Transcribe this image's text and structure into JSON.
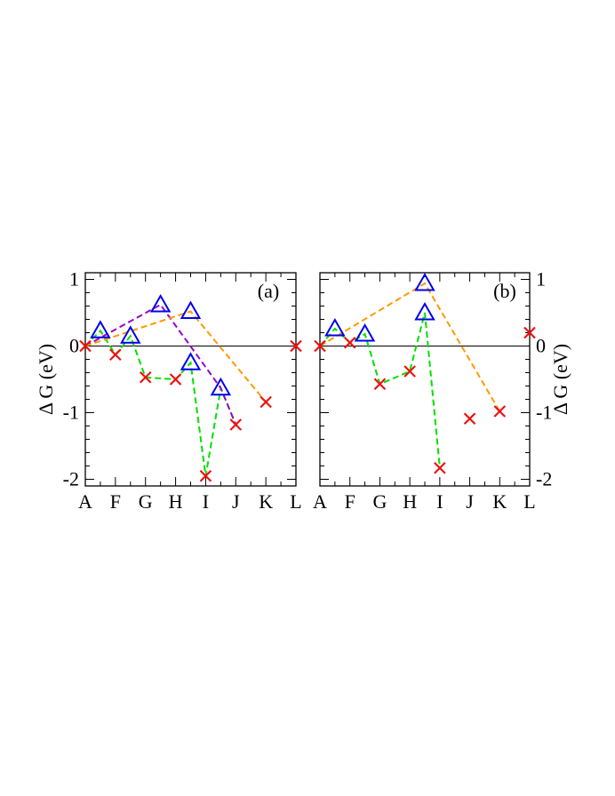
{
  "chart_data": [
    {
      "type": "scatter",
      "panel_label": "(a)",
      "ylabel": "Δ G (eV)",
      "ylabel_side": "left",
      "ylim": [
        -2.1,
        1.1
      ],
      "yticks": [
        1,
        0,
        -1,
        -2
      ],
      "ytick_labels": [
        "1",
        "0",
        "-1",
        "-2"
      ],
      "categories": [
        "A",
        "F",
        "G",
        "H",
        "I",
        "J",
        "K",
        "L"
      ],
      "grid": false,
      "points": {
        "crosses": [
          {
            "x": 0.0,
            "y": 0.0
          },
          {
            "x": 1.0,
            "y": -0.13
          },
          {
            "x": 2.0,
            "y": -0.47
          },
          {
            "x": 3.0,
            "y": -0.5
          },
          {
            "x": 4.0,
            "y": -1.95
          },
          {
            "x": 5.0,
            "y": -1.18
          },
          {
            "x": 6.0,
            "y": -0.84
          },
          {
            "x": 7.0,
            "y": 0.0
          }
        ],
        "triangles": [
          {
            "x": 0.5,
            "y": 0.23
          },
          {
            "x": 1.5,
            "y": 0.15
          },
          {
            "x": 2.5,
            "y": 0.62
          },
          {
            "x": 3.5,
            "y": 0.52
          },
          {
            "x": 3.5,
            "y": -0.25
          },
          {
            "x": 4.5,
            "y": -0.63
          }
        ]
      },
      "paths": [
        {
          "color": "#00e000",
          "points": [
            [
              0,
              0
            ],
            [
              0.5,
              0.23
            ],
            [
              1,
              -0.13
            ],
            [
              1.5,
              0.15
            ],
            [
              2,
              -0.47
            ],
            [
              3,
              -0.5
            ],
            [
              3.5,
              -0.25
            ],
            [
              4,
              -1.95
            ],
            [
              4.5,
              -0.63
            ],
            [
              5,
              -1.18
            ]
          ]
        },
        {
          "color": "#9900cc",
          "points": [
            [
              0,
              0
            ],
            [
              2.5,
              0.62
            ],
            [
              4.5,
              -0.63
            ],
            [
              5,
              -1.18
            ]
          ]
        },
        {
          "color": "#ff9900",
          "points": [
            [
              0,
              0
            ],
            [
              3.5,
              0.52
            ],
            [
              6,
              -0.84
            ]
          ]
        }
      ]
    },
    {
      "type": "scatter",
      "panel_label": "(b)",
      "ylabel": "Δ G (eV)",
      "ylabel_side": "right",
      "ylim": [
        -2.1,
        1.1
      ],
      "yticks": [
        1,
        0,
        -1,
        -2
      ],
      "ytick_labels": [
        "1",
        "0",
        "-1",
        "-2"
      ],
      "categories": [
        "A",
        "F",
        "G",
        "H",
        "I",
        "J",
        "K",
        "L"
      ],
      "grid": false,
      "points": {
        "crosses": [
          {
            "x": 0.0,
            "y": 0.0
          },
          {
            "x": 1.0,
            "y": 0.05
          },
          {
            "x": 2.0,
            "y": -0.57
          },
          {
            "x": 3.0,
            "y": -0.38
          },
          {
            "x": 4.0,
            "y": -1.83
          },
          {
            "x": 5.0,
            "y": -1.09
          },
          {
            "x": 6.0,
            "y": -0.98
          },
          {
            "x": 7.0,
            "y": 0.2
          }
        ],
        "triangles": [
          {
            "x": 0.5,
            "y": 0.26
          },
          {
            "x": 1.5,
            "y": 0.18
          },
          {
            "x": 3.5,
            "y": 0.94
          },
          {
            "x": 3.5,
            "y": 0.5
          }
        ]
      },
      "paths": [
        {
          "color": "#00e000",
          "points": [
            [
              0,
              0
            ],
            [
              0.5,
              0.26
            ],
            [
              1,
              0.05
            ],
            [
              1.5,
              0.18
            ],
            [
              2,
              -0.57
            ],
            [
              3,
              -0.38
            ],
            [
              3.5,
              0.5
            ],
            [
              4,
              -1.83
            ]
          ]
        },
        {
          "color": "#ff9900",
          "points": [
            [
              0,
              0
            ],
            [
              3.5,
              0.94
            ],
            [
              6,
              -0.98
            ]
          ]
        }
      ]
    }
  ],
  "styles": {
    "cross_color": "#ee1111",
    "triangle_color": "#0000ee",
    "axis_color": "#000000"
  }
}
